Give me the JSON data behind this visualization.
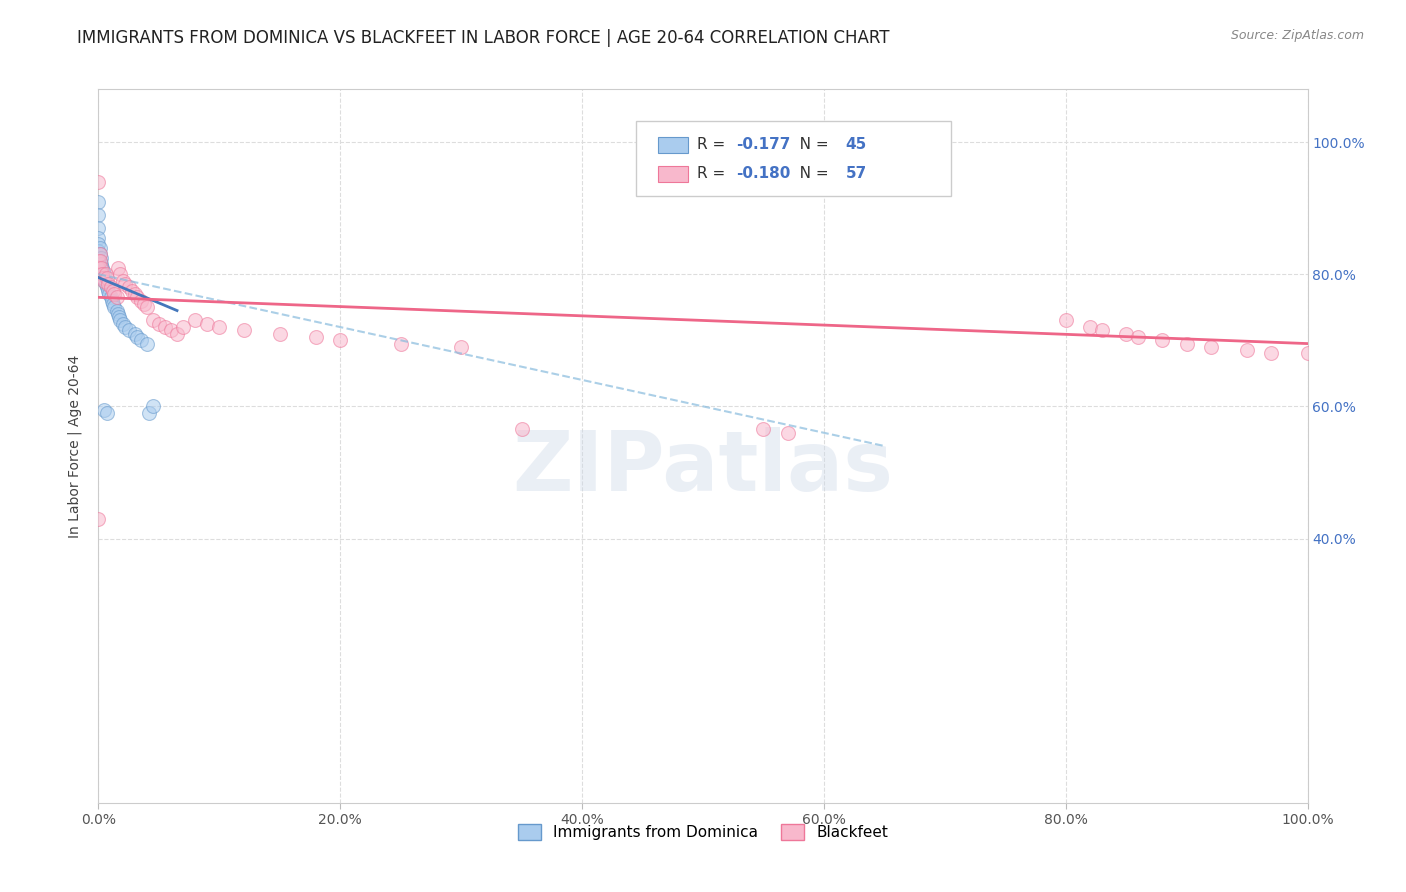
{
  "title": "IMMIGRANTS FROM DOMINICA VS BLACKFEET IN LABOR FORCE | AGE 20-64 CORRELATION CHART",
  "source": "Source: ZipAtlas.com",
  "ylabel": "In Labor Force | Age 20-64",
  "watermark": "ZIPatlas",
  "legend1_r": "-0.177",
  "legend1_n": "45",
  "legend2_r": "-0.180",
  "legend2_n": "57",
  "dominica_color": "#aaccee",
  "blackfeet_color": "#f8b8cc",
  "dominica_edge_color": "#6699cc",
  "blackfeet_edge_color": "#ee7799",
  "dominica_line_color": "#4477bb",
  "blackfeet_line_color": "#ee6688",
  "right_axis_color": "#4472c4",
  "marker_size": 100,
  "marker_alpha": 0.55,
  "background_color": "#ffffff",
  "grid_color": "#dddddd",
  "title_fontsize": 12,
  "axis_label_fontsize": 10,
  "tick_fontsize": 10,
  "xlim": [
    0.0,
    1.0
  ],
  "ylim": [
    0.0,
    1.08
  ],
  "yticks": [
    0.4,
    0.6,
    0.8,
    1.0
  ],
  "ytick_labels": [
    "40.0%",
    "60.0%",
    "80.0%",
    "100.0%"
  ],
  "xticks": [
    0.0,
    0.2,
    0.4,
    0.6,
    0.8,
    1.0
  ],
  "xtick_labels": [
    "0.0%",
    "20.0%",
    "40.0%",
    "60.0%",
    "80.0%",
    "100.0%"
  ],
  "dom_x": [
    0.0,
    0.0,
    0.0,
    0.0,
    0.0,
    0.0,
    0.0,
    0.0,
    0.0,
    0.001,
    0.001,
    0.001,
    0.001,
    0.002,
    0.002,
    0.002,
    0.003,
    0.003,
    0.004,
    0.004,
    0.005,
    0.005,
    0.006,
    0.007,
    0.008,
    0.009,
    0.01,
    0.011,
    0.012,
    0.013,
    0.015,
    0.016,
    0.017,
    0.018,
    0.02,
    0.022,
    0.025,
    0.03,
    0.032,
    0.035,
    0.04,
    0.042,
    0.045,
    0.005,
    0.007
  ],
  "dom_y": [
    0.91,
    0.89,
    0.87,
    0.855,
    0.845,
    0.835,
    0.825,
    0.815,
    0.81,
    0.84,
    0.83,
    0.82,
    0.81,
    0.825,
    0.815,
    0.8,
    0.81,
    0.8,
    0.805,
    0.795,
    0.8,
    0.79,
    0.785,
    0.78,
    0.775,
    0.77,
    0.765,
    0.76,
    0.755,
    0.75,
    0.745,
    0.74,
    0.735,
    0.73,
    0.725,
    0.72,
    0.715,
    0.71,
    0.705,
    0.7,
    0.695,
    0.59,
    0.6,
    0.595,
    0.59
  ],
  "bft_x": [
    0.0,
    0.0,
    0.0,
    0.001,
    0.001,
    0.002,
    0.003,
    0.004,
    0.005,
    0.006,
    0.007,
    0.008,
    0.01,
    0.012,
    0.013,
    0.015,
    0.016,
    0.018,
    0.02,
    0.022,
    0.025,
    0.028,
    0.03,
    0.032,
    0.035,
    0.038,
    0.04,
    0.045,
    0.05,
    0.055,
    0.06,
    0.065,
    0.07,
    0.08,
    0.09,
    0.1,
    0.12,
    0.15,
    0.18,
    0.2,
    0.25,
    0.3,
    0.35,
    0.55,
    0.57,
    0.8,
    0.82,
    0.83,
    0.85,
    0.86,
    0.88,
    0.9,
    0.92,
    0.95,
    0.97,
    1.0,
    0.0
  ],
  "bft_y": [
    0.94,
    0.82,
    0.81,
    0.83,
    0.82,
    0.81,
    0.8,
    0.795,
    0.79,
    0.8,
    0.795,
    0.785,
    0.78,
    0.775,
    0.77,
    0.765,
    0.81,
    0.8,
    0.79,
    0.785,
    0.78,
    0.775,
    0.77,
    0.765,
    0.76,
    0.755,
    0.75,
    0.73,
    0.725,
    0.72,
    0.715,
    0.71,
    0.72,
    0.73,
    0.725,
    0.72,
    0.715,
    0.71,
    0.705,
    0.7,
    0.695,
    0.69,
    0.565,
    0.565,
    0.56,
    0.73,
    0.72,
    0.715,
    0.71,
    0.705,
    0.7,
    0.695,
    0.69,
    0.685,
    0.68,
    0.68,
    0.43
  ],
  "dom_trend_x": [
    0.0,
    0.065
  ],
  "dom_trend_y": [
    0.795,
    0.745
  ],
  "bft_trend_x": [
    0.0,
    1.0
  ],
  "bft_trend_y": [
    0.765,
    0.695
  ]
}
